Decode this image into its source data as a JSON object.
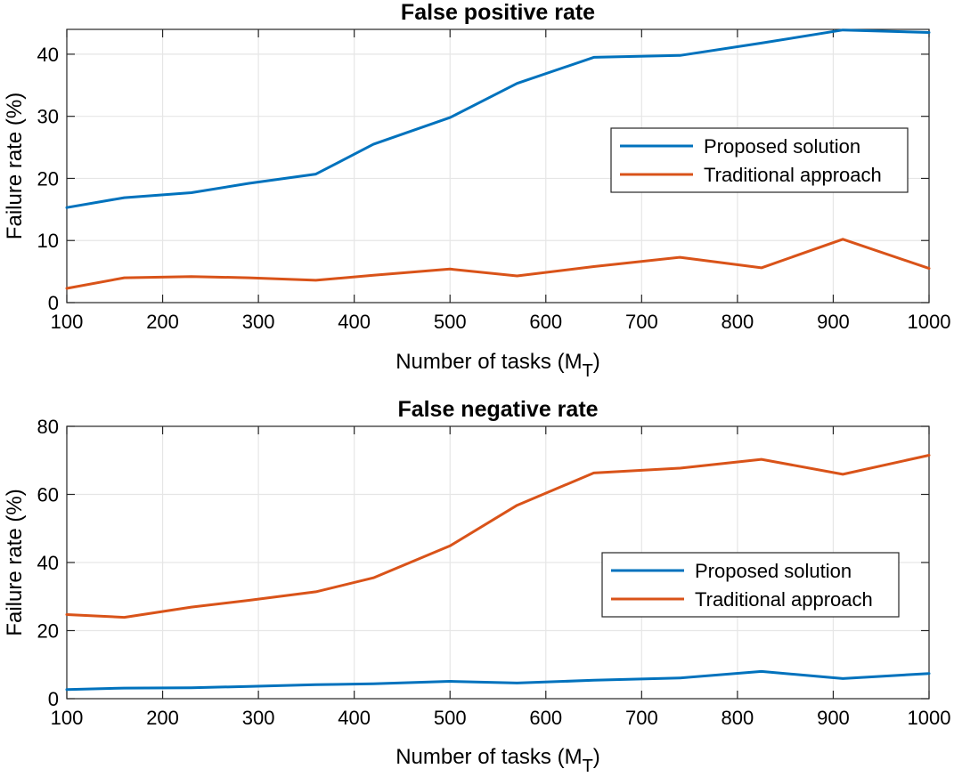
{
  "colors": {
    "proposed": "#0072BD",
    "traditional": "#D95319"
  },
  "chart_data": [
    {
      "type": "line",
      "title": "False positive rate",
      "xlabel_main": "Number of tasks (M",
      "xlabel_sub": "T",
      "xlabel_close": ")",
      "ylabel": "Failure rate (%)",
      "xlim": [
        100,
        1000
      ],
      "ylim": [
        0,
        44
      ],
      "xticks": [
        100,
        200,
        300,
        400,
        500,
        600,
        700,
        800,
        900,
        1000
      ],
      "yticks": [
        0,
        10,
        20,
        30,
        40
      ],
      "grid": true,
      "legend_position": "right",
      "series": [
        {
          "name": "Proposed solution",
          "color_key": "proposed",
          "x": [
            100,
            160,
            230,
            290,
            360,
            420,
            500,
            570,
            650,
            740,
            825,
            910,
            1000
          ],
          "y": [
            15.3,
            16.9,
            17.7,
            19.2,
            20.7,
            25.5,
            29.8,
            35.3,
            39.5,
            39.8,
            41.8,
            43.9,
            43.5
          ]
        },
        {
          "name": "Traditional approach",
          "color_key": "traditional",
          "x": [
            100,
            160,
            230,
            290,
            360,
            420,
            500,
            570,
            650,
            740,
            825,
            910,
            1000
          ],
          "y": [
            2.3,
            4.0,
            4.2,
            4.0,
            3.6,
            4.4,
            5.4,
            4.3,
            5.8,
            7.3,
            5.6,
            10.2,
            5.5
          ]
        }
      ]
    },
    {
      "type": "line",
      "title": "False negative rate",
      "xlabel_main": "Number of tasks (M",
      "xlabel_sub": "T",
      "xlabel_close": ")",
      "ylabel": "Failure rate (%)",
      "xlim": [
        100,
        1000
      ],
      "ylim": [
        0,
        80
      ],
      "xticks": [
        100,
        200,
        300,
        400,
        500,
        600,
        700,
        800,
        900,
        1000
      ],
      "yticks": [
        0,
        20,
        40,
        60,
        80
      ],
      "grid": true,
      "legend_position": "right",
      "series": [
        {
          "name": "Proposed solution",
          "color_key": "proposed",
          "x": [
            100,
            160,
            230,
            290,
            360,
            420,
            500,
            570,
            650,
            740,
            825,
            910,
            1000
          ],
          "y": [
            2.7,
            3.1,
            3.2,
            3.6,
            4.1,
            4.4,
            5.1,
            4.6,
            5.4,
            6.1,
            8.0,
            5.9,
            7.4
          ]
        },
        {
          "name": "Traditional approach",
          "color_key": "traditional",
          "x": [
            100,
            160,
            230,
            290,
            360,
            420,
            500,
            570,
            650,
            740,
            825,
            910,
            1000
          ],
          "y": [
            24.7,
            23.9,
            26.9,
            28.9,
            31.4,
            35.5,
            44.9,
            56.8,
            66.3,
            67.7,
            70.3,
            65.9,
            71.5
          ]
        }
      ]
    }
  ]
}
